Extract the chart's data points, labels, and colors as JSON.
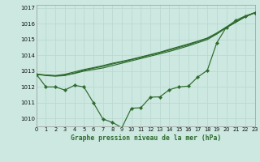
{
  "title": "Graphe pression niveau de la mer (hPa)",
  "bg_color": "#cce8e0",
  "grid_color": "#b8d8d0",
  "line_color": "#2d6a2d",
  "xlim": [
    0,
    23
  ],
  "ylim": [
    1009.5,
    1017.2
  ],
  "yticks": [
    1010,
    1011,
    1012,
    1013,
    1014,
    1015,
    1016,
    1017
  ],
  "xticks": [
    0,
    1,
    2,
    3,
    4,
    5,
    6,
    7,
    8,
    9,
    10,
    11,
    12,
    13,
    14,
    15,
    16,
    17,
    18,
    19,
    20,
    21,
    22,
    23
  ],
  "series_main": [
    1012.8,
    1012.0,
    1012.0,
    1011.8,
    1012.1,
    1012.0,
    1011.0,
    1009.97,
    1009.75,
    1009.42,
    1010.65,
    1010.68,
    1011.35,
    1011.37,
    1011.82,
    1012.0,
    1012.05,
    1012.63,
    1013.05,
    1014.8,
    1015.78,
    1016.22,
    1016.5,
    1016.7
  ],
  "series_line1": [
    1012.8,
    1012.75,
    1012.7,
    1012.75,
    1012.85,
    1013.0,
    1013.1,
    1013.2,
    1013.35,
    1013.5,
    1013.65,
    1013.8,
    1013.95,
    1014.1,
    1014.25,
    1014.42,
    1014.6,
    1014.8,
    1015.0,
    1015.35,
    1015.75,
    1016.1,
    1016.45,
    1016.7
  ],
  "series_line2": [
    1012.8,
    1012.75,
    1012.72,
    1012.8,
    1012.95,
    1013.1,
    1013.22,
    1013.35,
    1013.5,
    1013.62,
    1013.75,
    1013.9,
    1014.05,
    1014.2,
    1014.38,
    1014.55,
    1014.72,
    1014.9,
    1015.1,
    1015.42,
    1015.8,
    1016.12,
    1016.47,
    1016.7
  ],
  "series_line3": [
    1012.8,
    1012.72,
    1012.68,
    1012.72,
    1012.88,
    1013.05,
    1013.18,
    1013.3,
    1013.45,
    1013.58,
    1013.72,
    1013.87,
    1014.02,
    1014.17,
    1014.33,
    1014.5,
    1014.67,
    1014.87,
    1015.07,
    1015.38,
    1015.77,
    1016.1,
    1016.45,
    1016.7
  ]
}
